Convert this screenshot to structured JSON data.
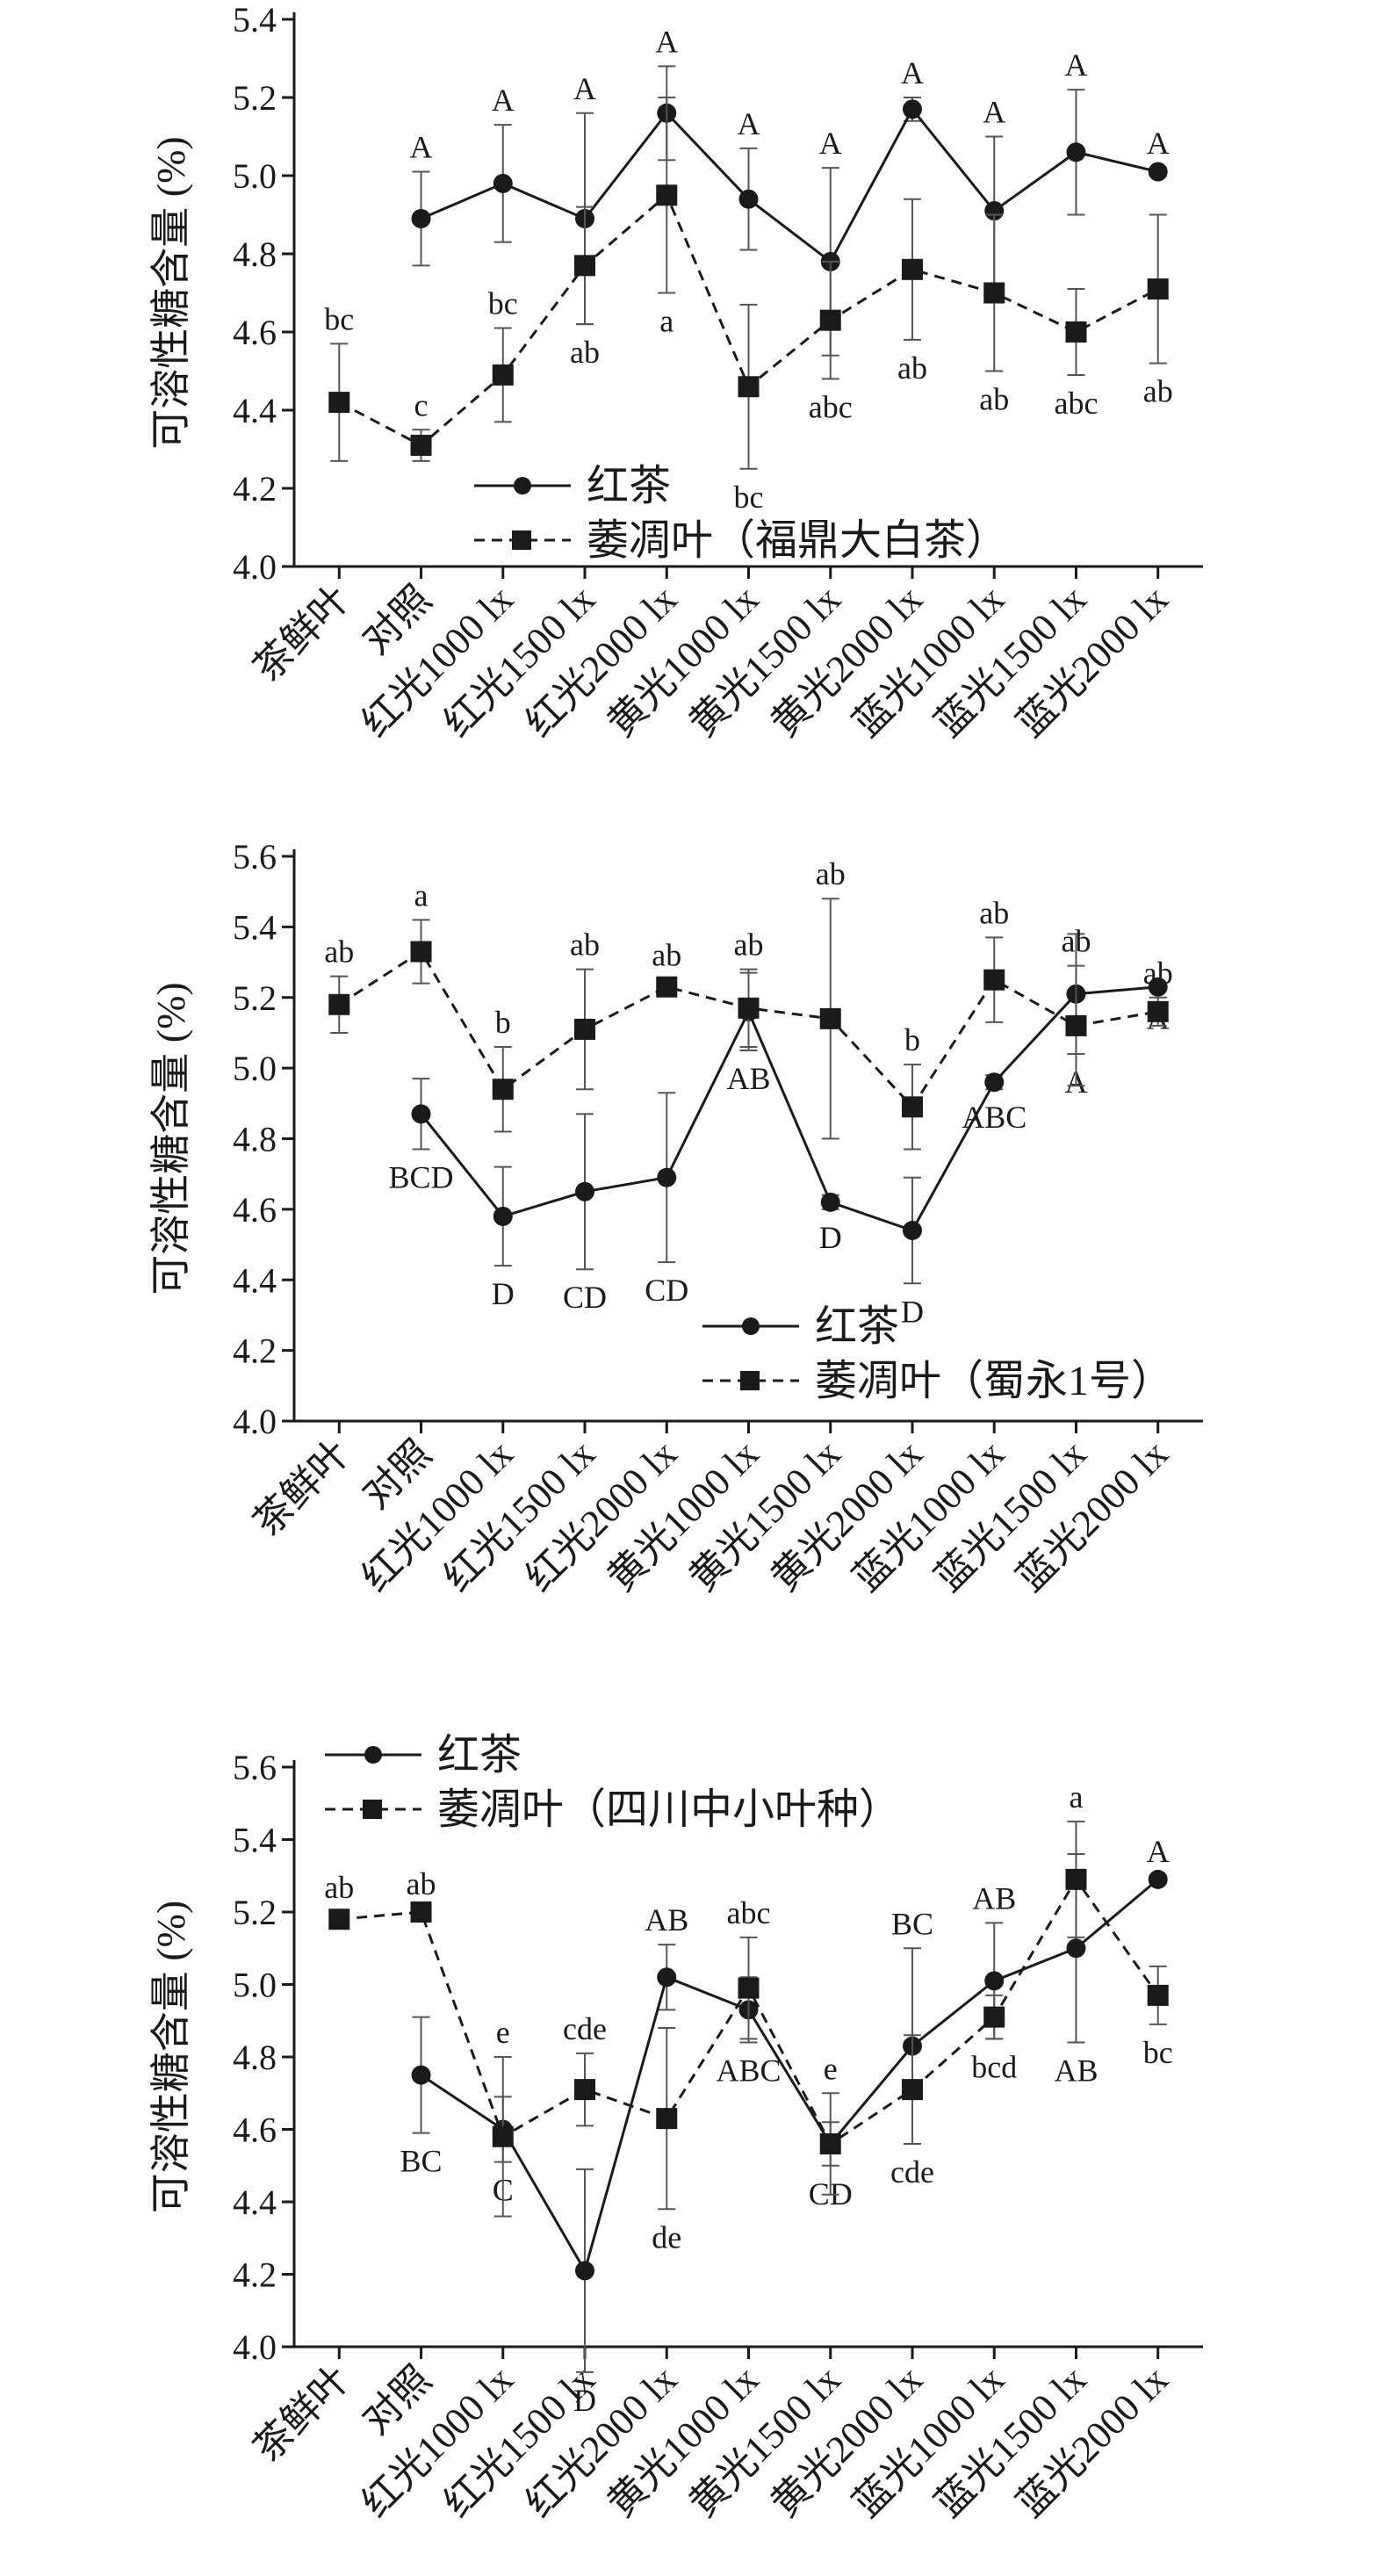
{
  "chart_data": [
    {
      "type": "line",
      "title": "",
      "xlabel": "",
      "ylabel": "可溶性糖含量 (%)",
      "ylim": [
        4.0,
        5.4
      ],
      "yticks": [
        "4.0",
        "4.2",
        "4.4",
        "4.6",
        "4.8",
        "5.0",
        "5.2",
        "5.4"
      ],
      "categories": [
        "茶鲜叶",
        "对照",
        "红光1000 lx",
        "红光1500 lx",
        "红光2000 lx",
        "黄光1000 lx",
        "黄光1500 lx",
        "黄光2000 lx",
        "蓝光1000 lx",
        "蓝光1500 lx",
        "蓝光2000 lx"
      ],
      "legend_position": "bottom-left",
      "series": [
        {
          "name": "红茶",
          "line_style": "solid",
          "marker": "circle",
          "values": [
            null,
            4.89,
            4.98,
            4.89,
            5.16,
            4.94,
            4.78,
            5.17,
            4.91,
            5.06,
            5.01
          ],
          "errors": [
            null,
            0.12,
            0.15,
            0.27,
            0.12,
            0.13,
            0.24,
            0.03,
            0.19,
            0.16,
            0.01
          ],
          "labels": [
            "",
            "A",
            "A",
            "A",
            "A",
            "A",
            "A",
            "A",
            "A",
            "A",
            "A"
          ]
        },
        {
          "name": "萎凋叶（福鼎大白茶）",
          "line_style": "dashed",
          "marker": "square",
          "values": [
            4.42,
            4.31,
            4.49,
            4.77,
            4.95,
            4.46,
            4.63,
            4.76,
            4.7,
            4.6,
            4.71
          ],
          "errors": [
            0.15,
            0.04,
            0.12,
            0.15,
            0.25,
            0.21,
            0.15,
            0.18,
            0.2,
            0.11,
            0.19
          ],
          "labels": [
            "bc",
            "c",
            "bc",
            "ab",
            "a",
            "bc",
            "abc",
            "ab",
            "ab",
            "abc",
            "ab"
          ]
        }
      ]
    },
    {
      "type": "line",
      "title": "",
      "xlabel": "",
      "ylabel": "可溶性糖含量 (%)",
      "ylim": [
        4.0,
        5.6
      ],
      "yticks": [
        "4.0",
        "4.2",
        "4.4",
        "4.6",
        "4.8",
        "5.0",
        "5.2",
        "5.4",
        "5.6"
      ],
      "categories": [
        "茶鲜叶",
        "对照",
        "红光1000 lx",
        "红光1500 lx",
        "红光2000 lx",
        "黄光1000 lx",
        "黄光1500 lx",
        "黄光2000 lx",
        "蓝光1000 lx",
        "蓝光1500 lx",
        "蓝光2000 lx"
      ],
      "legend_position": "bottom-right",
      "series": [
        {
          "name": "红茶",
          "line_style": "solid",
          "marker": "circle",
          "values": [
            null,
            4.87,
            4.58,
            4.65,
            4.69,
            5.16,
            4.62,
            4.54,
            4.96,
            5.21,
            5.23
          ],
          "errors": [
            null,
            0.1,
            0.14,
            0.22,
            0.24,
            0.11,
            0.02,
            0.15,
            0.02,
            0.17,
            0.01
          ],
          "labels": [
            "",
            "BCD",
            "D",
            "CD",
            "CD",
            "AB",
            "D",
            "D",
            "ABC",
            "A",
            "A"
          ]
        },
        {
          "name": "萎凋叶（蜀永1号）",
          "line_style": "dashed",
          "marker": "square",
          "values": [
            5.18,
            5.33,
            4.94,
            5.11,
            5.23,
            5.17,
            5.14,
            4.89,
            5.25,
            5.12,
            5.16
          ],
          "errors": [
            0.08,
            0.09,
            0.12,
            0.17,
            0.02,
            0.11,
            0.34,
            0.12,
            0.12,
            0.17,
            0.04
          ],
          "labels": [
            "ab",
            "a",
            "b",
            "ab",
            "ab",
            "ab",
            "ab",
            "b",
            "ab",
            "ab",
            "ab"
          ]
        }
      ]
    },
    {
      "type": "line",
      "title": "",
      "xlabel": "",
      "ylabel": "可溶性糖含量 (%)",
      "ylim": [
        4.0,
        5.6
      ],
      "yticks": [
        "4.0",
        "4.2",
        "4.4",
        "4.6",
        "4.8",
        "5.0",
        "5.2",
        "5.4",
        "5.6"
      ],
      "categories": [
        "茶鲜叶",
        "对照",
        "红光1000 lx",
        "红光1500 lx",
        "红光2000 lx",
        "黄光1000 lx",
        "黄光1500 lx",
        "黄光2000 lx",
        "蓝光1000 lx",
        "蓝光1500 lx",
        "蓝光2000 lx"
      ],
      "legend_position": "top-left",
      "series": [
        {
          "name": "红茶",
          "line_style": "solid",
          "marker": "circle",
          "values": [
            null,
            4.75,
            4.6,
            4.21,
            5.02,
            4.93,
            4.56,
            4.83,
            5.01,
            5.1,
            5.29
          ],
          "errors": [
            null,
            0.16,
            0.09,
            0.28,
            0.09,
            0.09,
            0.06,
            0.27,
            0.16,
            0.26,
            0.01
          ],
          "labels": [
            "",
            "BC",
            "C",
            "D",
            "AB",
            "ABC",
            "CD",
            "BC",
            "AB",
            "AB",
            "A"
          ]
        },
        {
          "name": "萎凋叶（四川中小叶种）",
          "line_style": "dashed",
          "marker": "square",
          "values": [
            5.18,
            5.2,
            4.58,
            4.71,
            4.63,
            4.99,
            4.56,
            4.71,
            4.91,
            5.29,
            4.97
          ],
          "errors": [
            0.02,
            0.01,
            0.22,
            0.1,
            0.25,
            0.14,
            0.14,
            0.15,
            0.06,
            0.16,
            0.08
          ],
          "labels": [
            "ab",
            "ab",
            "e",
            "cde",
            "de",
            "abc",
            "e",
            "cde",
            "bcd",
            "a",
            "bc"
          ]
        }
      ]
    }
  ]
}
